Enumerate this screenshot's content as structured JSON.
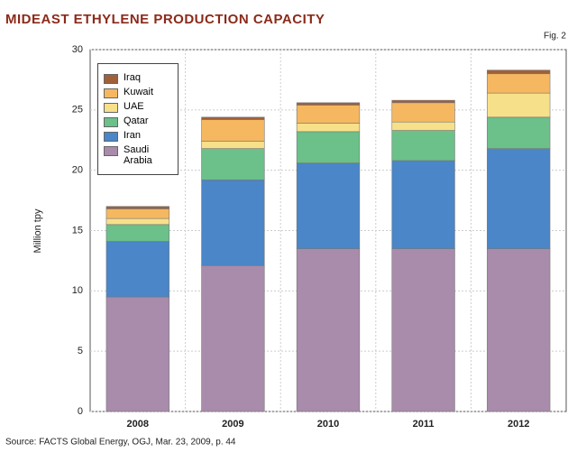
{
  "chart_data": {
    "type": "stacked_bar",
    "title": "MIDEAST ETHYLENE PRODUCTION CAPACITY",
    "figure_label": "Fig. 2",
    "y_label": "Million tpy",
    "source": "Source: FACTS Global Energy, OGJ, Mar. 23, 2009, p. 44",
    "categories": [
      "2008",
      "2009",
      "2010",
      "2011",
      "2012"
    ],
    "series": [
      {
        "name": "Saudi Arabia",
        "color": "#a98bab",
        "values": [
          9.5,
          12.1,
          13.5,
          13.5,
          13.5
        ]
      },
      {
        "name": "Iran",
        "color": "#4a86c8",
        "values": [
          4.6,
          7.1,
          7.1,
          7.3,
          8.3
        ]
      },
      {
        "name": "Qatar",
        "color": "#6cc08a",
        "values": [
          1.4,
          2.6,
          2.6,
          2.5,
          2.6
        ]
      },
      {
        "name": "UAE",
        "color": "#f7e08a",
        "values": [
          0.5,
          0.6,
          0.7,
          0.7,
          2.0
        ]
      },
      {
        "name": "Kuwait",
        "color": "#f5b860",
        "values": [
          0.8,
          1.8,
          1.5,
          1.6,
          1.6
        ]
      },
      {
        "name": "Iraq",
        "color": "#a0603a",
        "values": [
          0.2,
          0.2,
          0.2,
          0.2,
          0.3
        ]
      }
    ],
    "ylim": [
      0,
      30
    ],
    "yticks": [
      0,
      5,
      10,
      15,
      20,
      25,
      30
    ],
    "grid": true
  }
}
